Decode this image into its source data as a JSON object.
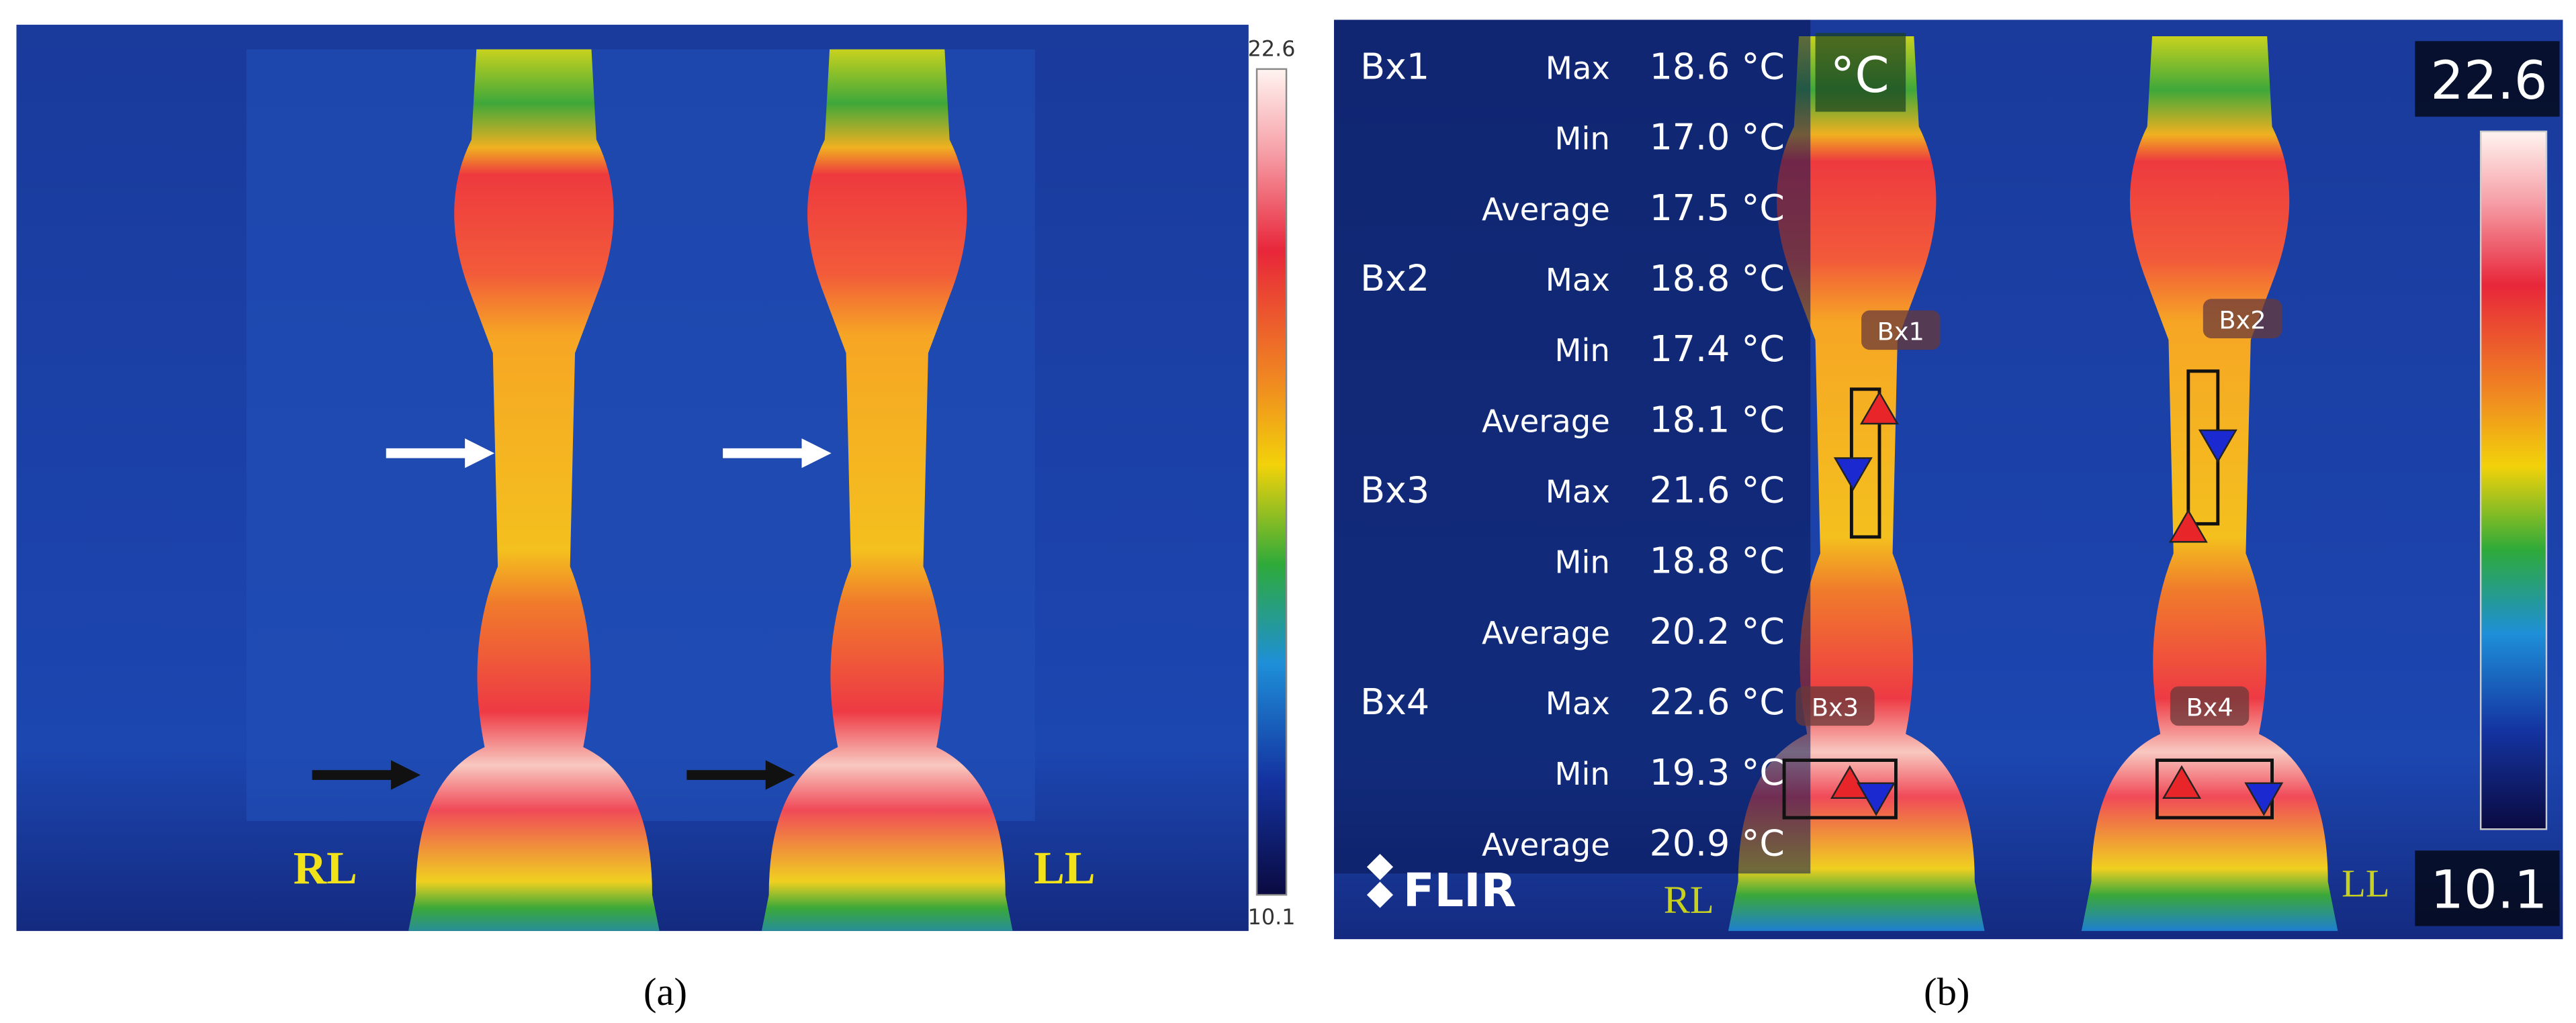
{
  "panel_a": {
    "scale_max": "22.6",
    "scale_min": "10.1",
    "left_label": "RL",
    "right_label": "LL",
    "caption": "(a)"
  },
  "panel_b": {
    "unit": "°C",
    "scale_max": "22.6",
    "scale_min": "10.1",
    "logo": "FLIR",
    "left_label": "RL",
    "right_label": "LL",
    "caption": "(b)",
    "measurements": [
      {
        "box": "Bx1",
        "rows": [
          {
            "stat": "Max",
            "value": "18.6 °C"
          },
          {
            "stat": "Min",
            "value": "17.0 °C"
          },
          {
            "stat": "Average",
            "value": "17.5 °C"
          }
        ]
      },
      {
        "box": "Bx2",
        "rows": [
          {
            "stat": "Max",
            "value": "18.8 °C"
          },
          {
            "stat": "Min",
            "value": "17.4 °C"
          },
          {
            "stat": "Average",
            "value": "18.1 °C"
          }
        ]
      },
      {
        "box": "Bx3",
        "rows": [
          {
            "stat": "Max",
            "value": "21.6 °C"
          },
          {
            "stat": "Min",
            "value": "18.8 °C"
          },
          {
            "stat": "Average",
            "value": "20.2 °C"
          }
        ]
      },
      {
        "box": "Bx4",
        "rows": [
          {
            "stat": "Max",
            "value": "22.6 °C"
          },
          {
            "stat": "Min",
            "value": "19.3 °C"
          },
          {
            "stat": "Average",
            "value": "20.9 °C"
          }
        ]
      }
    ],
    "box_labels": [
      "Bx1",
      "Bx2",
      "Bx3",
      "Bx4"
    ]
  }
}
